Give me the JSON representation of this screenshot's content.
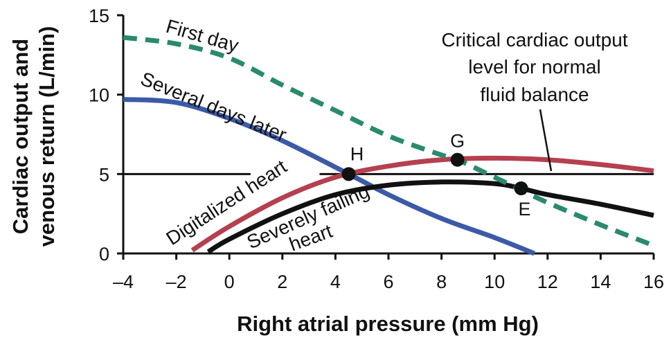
{
  "chart_data": {
    "type": "line",
    "title": "",
    "xlabel": "Right atrial pressure (mm Hg)",
    "ylabel_lines": [
      "Cardiac output and",
      "venous return (L/min)"
    ],
    "xlim": [
      -4,
      16
    ],
    "ylim": [
      0,
      15
    ],
    "x_ticks": [
      -4,
      -2,
      0,
      2,
      4,
      6,
      8,
      10,
      12,
      14,
      16
    ],
    "y_ticks": [
      0,
      5,
      10,
      15
    ],
    "x_tick_labels": [
      "–4",
      "–2",
      "0",
      "2",
      "4",
      "6",
      "8",
      "10",
      "12",
      "14",
      "16"
    ],
    "y_tick_labels": [
      "0",
      "5",
      "10",
      "15"
    ],
    "grid": false,
    "legend": "none",
    "series": [
      {
        "name": "First day",
        "color": "#2a8a6e",
        "style": "dashed",
        "points": [
          [
            -4,
            13.6
          ],
          [
            -2,
            13.2
          ],
          [
            0,
            12.3
          ],
          [
            2,
            10.6
          ],
          [
            4,
            9.0
          ],
          [
            6,
            7.4
          ],
          [
            8,
            6.2
          ],
          [
            8.6,
            5.9
          ],
          [
            10,
            4.8
          ],
          [
            11,
            4.0
          ],
          [
            12,
            3.2
          ],
          [
            14,
            1.8
          ],
          [
            16,
            0.5
          ]
        ]
      },
      {
        "name": "Several days later",
        "color": "#3d5aa8",
        "style": "solid",
        "points": [
          [
            -4,
            9.7
          ],
          [
            -2,
            9.5
          ],
          [
            0,
            8.5
          ],
          [
            2,
            7.1
          ],
          [
            4.5,
            5.0
          ],
          [
            6,
            3.7
          ],
          [
            8,
            2.2
          ],
          [
            10,
            1.0
          ],
          [
            11.5,
            0.0
          ]
        ]
      },
      {
        "name": "Digitalized heart",
        "color": "#b5404f",
        "style": "solid",
        "points": [
          [
            -1.4,
            0.2
          ],
          [
            0,
            1.7
          ],
          [
            2,
            3.5
          ],
          [
            4,
            4.8
          ],
          [
            6,
            5.5
          ],
          [
            8,
            5.9
          ],
          [
            10,
            6.0
          ],
          [
            12,
            5.9
          ],
          [
            14,
            5.6
          ],
          [
            16,
            5.2
          ]
        ]
      },
      {
        "name": "Severely failing heart",
        "color": "#111111",
        "style": "solid",
        "points": [
          [
            -0.8,
            0.1
          ],
          [
            0,
            0.9
          ],
          [
            2,
            2.5
          ],
          [
            4,
            3.7
          ],
          [
            6,
            4.3
          ],
          [
            8,
            4.5
          ],
          [
            10,
            4.4
          ],
          [
            11,
            4.1
          ],
          [
            12,
            3.7
          ],
          [
            14,
            3.1
          ],
          [
            16,
            2.4
          ]
        ]
      },
      {
        "name": "Critical cardiac output level for normal fluid balance",
        "color": "#111111",
        "style": "reference",
        "points": [
          [
            -4,
            5.0
          ],
          [
            16,
            5.0
          ]
        ]
      }
    ],
    "points_of_interest": [
      {
        "label": "H",
        "x": 4.5,
        "y": 5.0
      },
      {
        "label": "G",
        "x": 8.6,
        "y": 5.9
      },
      {
        "label": "E",
        "x": 11.0,
        "y": 4.1
      }
    ],
    "annotations": {
      "first_day": "First day",
      "several_days": "Several days later",
      "digitalized": "Digitalized heart",
      "failing_line1": "Severely failing",
      "failing_line2": "heart",
      "critical_line1": "Critical cardiac output",
      "critical_line2": "level for normal",
      "critical_line3": "fluid balance"
    }
  }
}
